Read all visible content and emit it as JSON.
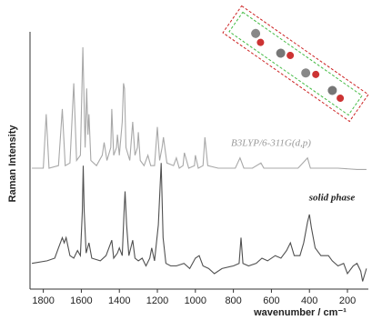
{
  "chart_data": {
    "type": "line",
    "xlabel": "wavenumber / cm⁻¹",
    "ylabel": "Raman Intensity",
    "annotations": [
      "B3LYP/6-311G(d,p)",
      "solid phase"
    ],
    "xlim": [
      1870,
      90
    ],
    "ylim": [
      0,
      100
    ],
    "xticks": [
      1800,
      1600,
      1400,
      1200,
      1000,
      800,
      600,
      400,
      200
    ],
    "series": [
      {
        "color": "#a8a8a8",
        "x": [
          1860,
          1800,
          1785,
          1770,
          1720,
          1700,
          1685,
          1660,
          1640,
          1625,
          1605,
          1592,
          1580,
          1572,
          1565,
          1560,
          1550,
          1520,
          1490,
          1480,
          1465,
          1445,
          1440,
          1430,
          1415,
          1410,
          1400,
          1385,
          1378,
          1373,
          1365,
          1345,
          1330,
          1318,
          1305,
          1300,
          1290,
          1270,
          1250,
          1235,
          1215,
          1200,
          1188,
          1175,
          1168,
          1150,
          1115,
          1100,
          1085,
          1065,
          1058,
          1035,
          1005,
          1000,
          985,
          960,
          950,
          935,
          880,
          790,
          765,
          745,
          700,
          655,
          640,
          560,
          460,
          410,
          395,
          350,
          250,
          150,
          100
        ],
        "values": [
          47,
          47,
          68,
          47,
          48,
          70,
          48,
          49,
          80,
          50,
          52,
          94,
          55,
          78,
          60,
          68,
          50,
          48,
          52,
          57,
          50,
          55,
          70,
          52,
          55,
          60,
          52,
          65,
          80,
          78,
          55,
          50,
          65,
          52,
          55,
          61,
          50,
          48,
          52,
          48,
          48,
          63,
          50,
          55,
          59,
          49,
          48,
          51,
          47,
          48,
          53,
          47,
          48,
          52,
          47,
          48,
          59,
          48,
          47,
          47,
          51,
          47,
          47,
          49,
          47,
          47,
          47,
          51,
          47,
          47,
          47,
          46.5,
          46.5
        ]
      },
      {
        "color": "#505050",
        "x": [
          1860,
          1780,
          1740,
          1720,
          1700,
          1690,
          1680,
          1660,
          1640,
          1620,
          1605,
          1595,
          1590,
          1585,
          1575,
          1560,
          1545,
          1500,
          1470,
          1440,
          1430,
          1410,
          1400,
          1385,
          1375,
          1370,
          1362,
          1350,
          1330,
          1318,
          1300,
          1280,
          1260,
          1240,
          1230,
          1215,
          1195,
          1180,
          1170,
          1155,
          1130,
          1100,
          1060,
          1030,
          1000,
          980,
          960,
          930,
          900,
          860,
          800,
          770,
          760,
          750,
          720,
          680,
          650,
          620,
          580,
          550,
          520,
          500,
          480,
          450,
          430,
          410,
          400,
          390,
          370,
          340,
          300,
          280,
          250,
          220,
          200,
          170,
          150,
          130,
          120,
          100
        ],
        "values": [
          10,
          11,
          12,
          16,
          20,
          18,
          20,
          13,
          12,
          15,
          13,
          30,
          48,
          30,
          14,
          18,
          12,
          11,
          13,
          19,
          12,
          14,
          16,
          13,
          30,
          38,
          25,
          13,
          19,
          12,
          11,
          12,
          9,
          12,
          16,
          11,
          25,
          49,
          20,
          10,
          9,
          9,
          10,
          8,
          12,
          13,
          9,
          8,
          6,
          8,
          9,
          10,
          20,
          10,
          9,
          10,
          12,
          11,
          13,
          12,
          15,
          18,
          13,
          13,
          18,
          26,
          29,
          24,
          16,
          13,
          13,
          11,
          9,
          10,
          6,
          9,
          10,
          7,
          3,
          8
        ]
      }
    ]
  }
}
